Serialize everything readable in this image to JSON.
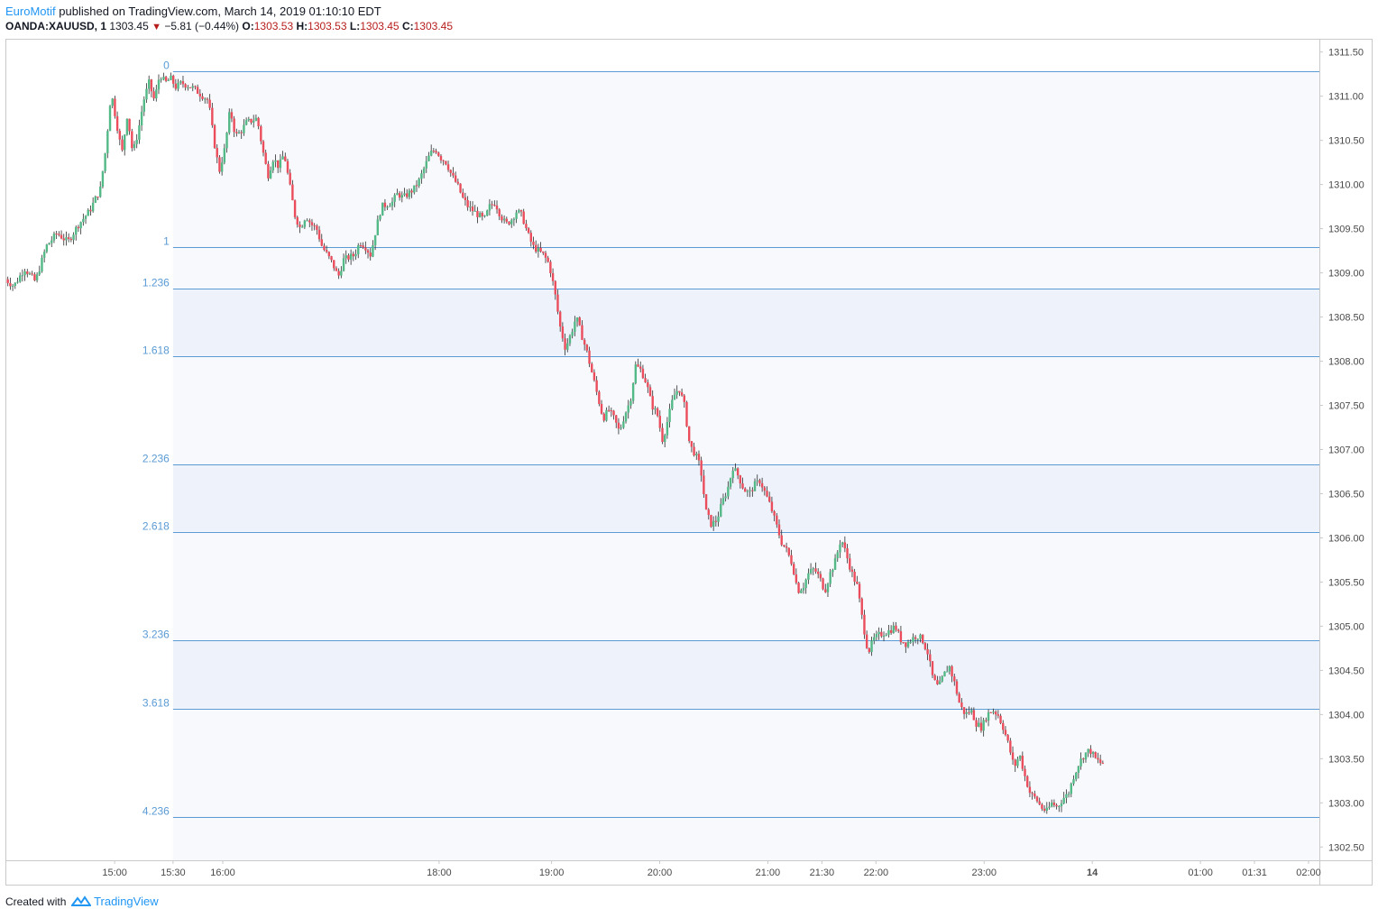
{
  "header": {
    "author": "EuroMotif",
    "published_text": "published on TradingView.com, March 14, 2019 01:10:10 EDT"
  },
  "symbol_line": {
    "symbol": "OANDA:XAUUSD, 1",
    "last": "1303.45",
    "change": "−5.81 (−0.44%)",
    "o_label": "O:",
    "o_value": "1303.53",
    "h_label": "H:",
    "h_value": "1303.53",
    "l_label": "L:",
    "l_value": "1303.45",
    "c_label": "C:",
    "c_value": "1303.45"
  },
  "footer": {
    "created_with": "Created with",
    "brand": "TradingView"
  },
  "colors": {
    "up": "#53b987",
    "down": "#eb4d5c",
    "fib_line": "#5b9bd5",
    "fib_label": "#5b9bd5",
    "fib_zone_light": "#f7f9fc",
    "fib_zone_dark": "#eef3fb",
    "axis_text": "#4a4a4a",
    "border": "#c9c9c9"
  },
  "chart_data": {
    "type": "candlestick",
    "symbol": "OANDA:XAUUSD",
    "interval": "1",
    "ylim": [
      1302.35,
      1311.65
    ],
    "yticks": [
      "1311.50",
      "1311.00",
      "1310.50",
      "1310.00",
      "1309.50",
      "1309.00",
      "1308.50",
      "1308.00",
      "1307.50",
      "1307.00",
      "1306.50",
      "1306.00",
      "1305.50",
      "1305.00",
      "1304.50",
      "1304.00",
      "1303.50",
      "1303.00",
      "1302.50"
    ],
    "xticks": [
      {
        "label": "15:00",
        "t": 14.96,
        "bold": false
      },
      {
        "label": "15:30",
        "t": 15.5,
        "bold": false
      },
      {
        "label": "16:00",
        "t": 15.96,
        "bold": false
      },
      {
        "label": "18:00",
        "t": 17.96,
        "bold": false
      },
      {
        "label": "19:00",
        "t": 19.0,
        "bold": false
      },
      {
        "label": "20:00",
        "t": 20.0,
        "bold": false
      },
      {
        "label": "21:00",
        "t": 21.0,
        "bold": false
      },
      {
        "label": "21:30",
        "t": 21.5,
        "bold": false
      },
      {
        "label": "22:00",
        "t": 22.0,
        "bold": false
      },
      {
        "label": "23:00",
        "t": 23.0,
        "bold": false
      },
      {
        "label": "14",
        "t": 24.0,
        "bold": true
      },
      {
        "label": "01:00",
        "t": 25.0,
        "bold": false
      },
      {
        "label": "01:31",
        "t": 25.5,
        "bold": false
      },
      {
        "label": "02:00",
        "t": 26.0,
        "bold": false
      }
    ],
    "fibonacci": {
      "start_time": 15.5,
      "levels": [
        {
          "ratio": "0",
          "price": 1311.28
        },
        {
          "ratio": "1",
          "price": 1309.29
        },
        {
          "ratio": "1.236",
          "price": 1308.82
        },
        {
          "ratio": "1.618",
          "price": 1308.06
        },
        {
          "ratio": "2.236",
          "price": 1306.83
        },
        {
          "ratio": "2.618",
          "price": 1306.07
        },
        {
          "ratio": "3.236",
          "price": 1304.84
        },
        {
          "ratio": "3.618",
          "price": 1304.07
        },
        {
          "ratio": "4.236",
          "price": 1302.84
        }
      ]
    },
    "price_path": [
      [
        13.95,
        1308.95
      ],
      [
        14.05,
        1308.85
      ],
      [
        14.15,
        1309.05
      ],
      [
        14.25,
        1308.9
      ],
      [
        14.35,
        1309.3
      ],
      [
        14.45,
        1309.45
      ],
      [
        14.55,
        1309.35
      ],
      [
        14.65,
        1309.55
      ],
      [
        14.75,
        1309.7
      ],
      [
        14.85,
        1309.95
      ],
      [
        14.9,
        1310.4
      ],
      [
        14.95,
        1311.05
      ],
      [
        15.0,
        1310.7
      ],
      [
        15.05,
        1310.35
      ],
      [
        15.1,
        1310.8
      ],
      [
        15.15,
        1310.35
      ],
      [
        15.2,
        1310.6
      ],
      [
        15.25,
        1310.95
      ],
      [
        15.3,
        1311.15
      ],
      [
        15.35,
        1310.95
      ],
      [
        15.4,
        1311.25
      ],
      [
        15.45,
        1311.15
      ],
      [
        15.5,
        1311.2
      ],
      [
        15.55,
        1311.1
      ],
      [
        15.6,
        1311.15
      ],
      [
        15.7,
        1311.1
      ],
      [
        15.8,
        1311.0
      ],
      [
        15.85,
        1310.95
      ],
      [
        15.9,
        1310.5
      ],
      [
        15.95,
        1310.15
      ],
      [
        16.0,
        1310.4
      ],
      [
        16.05,
        1310.85
      ],
      [
        16.1,
        1310.55
      ],
      [
        16.15,
        1310.6
      ],
      [
        16.2,
        1310.7
      ],
      [
        16.3,
        1310.75
      ],
      [
        16.35,
        1310.4
      ],
      [
        16.4,
        1310.1
      ],
      [
        16.45,
        1310.3
      ],
      [
        16.5,
        1310.2
      ],
      [
        16.55,
        1310.35
      ],
      [
        16.6,
        1310.0
      ],
      [
        16.65,
        1309.65
      ],
      [
        16.7,
        1309.5
      ],
      [
        16.75,
        1309.65
      ],
      [
        16.8,
        1309.55
      ],
      [
        16.85,
        1309.5
      ],
      [
        16.9,
        1309.3
      ],
      [
        17.0,
        1309.1
      ],
      [
        17.05,
        1308.95
      ],
      [
        17.1,
        1309.15
      ],
      [
        17.2,
        1309.2
      ],
      [
        17.25,
        1309.35
      ],
      [
        17.3,
        1309.3
      ],
      [
        17.35,
        1309.2
      ],
      [
        17.4,
        1309.5
      ],
      [
        17.45,
        1309.75
      ],
      [
        17.55,
        1309.8
      ],
      [
        17.6,
        1309.9
      ],
      [
        17.65,
        1309.85
      ],
      [
        17.75,
        1309.95
      ],
      [
        17.8,
        1310.05
      ],
      [
        17.85,
        1310.2
      ],
      [
        17.9,
        1310.35
      ],
      [
        17.95,
        1310.4
      ],
      [
        18.0,
        1310.3
      ],
      [
        18.05,
        1310.25
      ],
      [
        18.1,
        1310.1
      ],
      [
        18.15,
        1310.0
      ],
      [
        18.2,
        1309.85
      ],
      [
        18.25,
        1309.75
      ],
      [
        18.3,
        1309.7
      ],
      [
        18.35,
        1309.65
      ],
      [
        18.4,
        1309.6
      ],
      [
        18.45,
        1309.75
      ],
      [
        18.5,
        1309.8
      ],
      [
        18.55,
        1309.65
      ],
      [
        18.6,
        1309.55
      ],
      [
        18.65,
        1309.6
      ],
      [
        18.7,
        1309.7
      ],
      [
        18.75,
        1309.65
      ],
      [
        18.8,
        1309.45
      ],
      [
        18.85,
        1309.3
      ],
      [
        18.9,
        1309.25
      ],
      [
        18.95,
        1309.2
      ],
      [
        19.0,
        1309.1
      ],
      [
        19.05,
        1308.8
      ],
      [
        19.1,
        1308.4
      ],
      [
        19.15,
        1308.15
      ],
      [
        19.2,
        1308.3
      ],
      [
        19.25,
        1308.5
      ],
      [
        19.3,
        1308.3
      ],
      [
        19.35,
        1308.1
      ],
      [
        19.4,
        1307.85
      ],
      [
        19.45,
        1307.6
      ],
      [
        19.5,
        1307.35
      ],
      [
        19.55,
        1307.45
      ],
      [
        19.6,
        1307.35
      ],
      [
        19.65,
        1307.2
      ],
      [
        19.7,
        1307.4
      ],
      [
        19.75,
        1307.55
      ],
      [
        19.8,
        1307.95
      ],
      [
        19.85,
        1307.9
      ],
      [
        19.9,
        1307.75
      ],
      [
        19.95,
        1307.5
      ],
      [
        20.0,
        1307.4
      ],
      [
        20.05,
        1307.1
      ],
      [
        20.1,
        1307.35
      ],
      [
        20.15,
        1307.6
      ],
      [
        20.2,
        1307.7
      ],
      [
        20.25,
        1307.5
      ],
      [
        20.3,
        1307.05
      ],
      [
        20.35,
        1306.95
      ],
      [
        20.4,
        1306.8
      ],
      [
        20.45,
        1306.3
      ],
      [
        20.5,
        1306.15
      ],
      [
        20.55,
        1306.2
      ],
      [
        20.6,
        1306.4
      ],
      [
        20.65,
        1306.55
      ],
      [
        20.7,
        1306.8
      ],
      [
        20.75,
        1306.7
      ],
      [
        20.8,
        1306.55
      ],
      [
        20.85,
        1306.5
      ],
      [
        20.9,
        1306.6
      ],
      [
        20.95,
        1306.65
      ],
      [
        21.0,
        1306.5
      ],
      [
        21.05,
        1306.35
      ],
      [
        21.1,
        1306.15
      ],
      [
        21.15,
        1305.95
      ],
      [
        21.2,
        1305.85
      ],
      [
        21.25,
        1305.7
      ],
      [
        21.3,
        1305.4
      ],
      [
        21.35,
        1305.45
      ],
      [
        21.4,
        1305.6
      ],
      [
        21.45,
        1305.65
      ],
      [
        21.5,
        1305.55
      ],
      [
        21.55,
        1305.4
      ],
      [
        21.6,
        1305.6
      ],
      [
        21.65,
        1305.75
      ],
      [
        21.7,
        1306.0
      ],
      [
        21.75,
        1305.8
      ],
      [
        21.8,
        1305.6
      ],
      [
        21.85,
        1305.45
      ],
      [
        21.9,
        1305.05
      ],
      [
        21.95,
        1304.7
      ],
      [
        22.0,
        1304.85
      ],
      [
        22.05,
        1304.9
      ],
      [
        22.15,
        1304.95
      ],
      [
        22.2,
        1305.0
      ],
      [
        22.25,
        1304.85
      ],
      [
        22.3,
        1304.8
      ],
      [
        22.35,
        1304.85
      ],
      [
        22.4,
        1304.9
      ],
      [
        22.45,
        1304.85
      ],
      [
        22.5,
        1304.7
      ],
      [
        22.55,
        1304.4
      ],
      [
        22.6,
        1304.3
      ],
      [
        22.65,
        1304.45
      ],
      [
        22.7,
        1304.55
      ],
      [
        22.75,
        1304.35
      ],
      [
        22.8,
        1304.1
      ],
      [
        22.85,
        1304.0
      ],
      [
        22.9,
        1304.05
      ],
      [
        22.95,
        1303.9
      ],
      [
        23.0,
        1303.85
      ],
      [
        23.05,
        1304.0
      ],
      [
        23.1,
        1304.05
      ],
      [
        23.15,
        1304.0
      ],
      [
        23.2,
        1303.85
      ],
      [
        23.25,
        1303.65
      ],
      [
        23.3,
        1303.4
      ],
      [
        23.35,
        1303.55
      ],
      [
        23.4,
        1303.3
      ],
      [
        23.45,
        1303.1
      ],
      [
        23.5,
        1303.05
      ],
      [
        23.55,
        1302.95
      ],
      [
        23.6,
        1302.9
      ],
      [
        23.65,
        1303.0
      ],
      [
        23.7,
        1302.95
      ],
      [
        23.75,
        1303.05
      ],
      [
        23.8,
        1303.1
      ],
      [
        23.85,
        1303.3
      ],
      [
        23.9,
        1303.45
      ],
      [
        23.95,
        1303.55
      ],
      [
        24.0,
        1303.6
      ],
      [
        24.05,
        1303.5
      ],
      [
        24.1,
        1303.45
      ]
    ]
  }
}
